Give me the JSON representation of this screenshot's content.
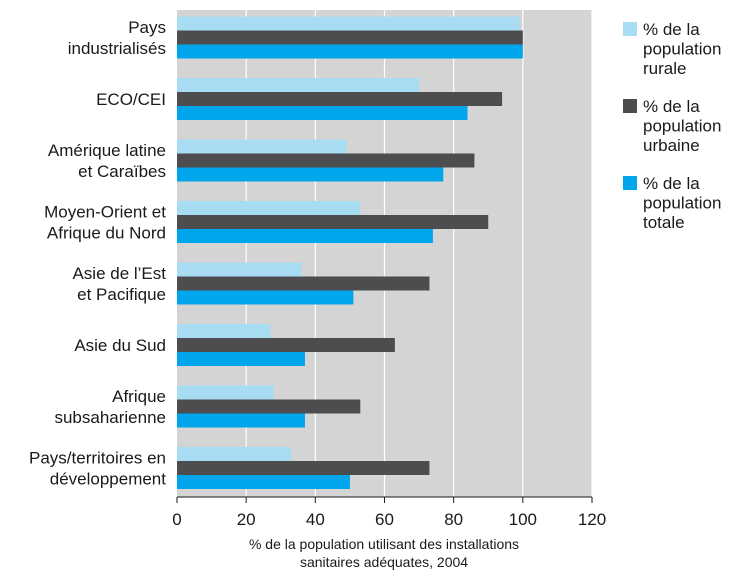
{
  "chart_data": {
    "type": "bar",
    "orientation": "horizontal",
    "categories": [
      [
        "Pays",
        "industrialisés"
      ],
      [
        "ECO/CEI"
      ],
      [
        "Amérique latine",
        "et Caraïbes"
      ],
      [
        "Moyen-Orient et",
        "Afrique du Nord"
      ],
      [
        "Asie de l’Est",
        "et Pacifique"
      ],
      [
        "Asie du Sud"
      ],
      [
        "Afrique",
        "subsaharienne"
      ],
      [
        "Pays/territoires en",
        "développement"
      ]
    ],
    "series": [
      {
        "name": [
          "% de la",
          "population",
          "rurale"
        ],
        "color": "#a8dcf3",
        "values": [
          99,
          70,
          49,
          53,
          36,
          27,
          28,
          33
        ]
      },
      {
        "name": [
          "% de la",
          "population",
          "urbaine"
        ],
        "color": "#4d4d4f",
        "values": [
          100,
          94,
          86,
          90,
          73,
          63,
          53,
          73
        ]
      },
      {
        "name": [
          "% de la",
          "population",
          "totale"
        ],
        "color": "#00a6eb",
        "values": [
          100,
          84,
          77,
          74,
          51,
          37,
          37,
          50
        ]
      }
    ],
    "xlabel": [
      "% de la population utilisant des installations",
      "sanitaires adéquates, 2004"
    ],
    "xlim": [
      0,
      120
    ],
    "xticks": [
      0,
      20,
      40,
      60,
      80,
      100,
      120
    ],
    "grid": true,
    "plot_background": "#d4d4d4",
    "gridline_color": "#ffffff",
    "legend_position": "right"
  }
}
